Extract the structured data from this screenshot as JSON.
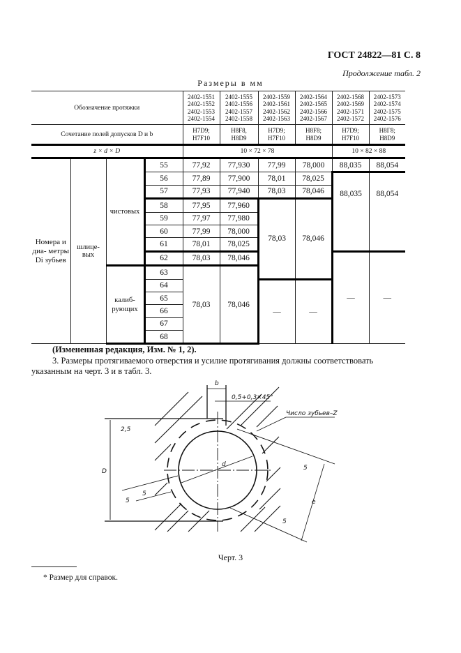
{
  "header": {
    "title": "ГОСТ 24822—81 С. 8",
    "continuation": "Продолжение табл. 2",
    "units": "Размеры в мм"
  },
  "table": {
    "designation_label": "Обозначение протяжки",
    "designations": [
      [
        "2402-1551",
        "2402-1552",
        "2402-1553",
        "2402-1554"
      ],
      [
        "2402-1555",
        "2402-1556",
        "2402-1557",
        "2402-1558"
      ],
      [
        "2402-1559",
        "2402-1561",
        "2402-1562",
        "2402-1563"
      ],
      [
        "2402-1564",
        "2402-1565",
        "2402-1566",
        "2402-1567"
      ],
      [
        "2402-1568",
        "2402-1569",
        "2402-1571",
        "2402-1572"
      ],
      [
        "2402-1573",
        "2402-1574",
        "2402-1575",
        "2402-1576"
      ]
    ],
    "tolerance_label": "Сочетание полей допусков D и b",
    "tolerances": [
      [
        "H7D9;",
        "H7F10"
      ],
      [
        "H8F8,",
        "H8D9"
      ],
      [
        "H7D9;",
        "H7F10"
      ],
      [
        "H8F8;",
        "H8D9"
      ],
      [
        "H7D9;",
        "H7F10"
      ],
      [
        "H8Г8;",
        "H8D9"
      ]
    ],
    "zdD_label": "z × d × D",
    "zdD": [
      "10 × 72 × 78",
      "10 × 82 × 88"
    ],
    "row_group": "Номера и диа- метры Di зубьев",
    "sub_group": "шлице- вых",
    "finish_label": "чистовых",
    "calib_label": "калиб- рующих",
    "rows": [
      {
        "n": "55",
        "v": [
          "77,92",
          "77,930",
          "77,99",
          "78,000",
          "88,035",
          "88,054"
        ]
      },
      {
        "n": "56",
        "v": [
          "77,89",
          "77,900",
          "78,01",
          "78,025"
        ]
      },
      {
        "n": "57",
        "v": [
          "77,93",
          "77,940",
          "78,03",
          "78,046"
        ]
      },
      {
        "n": "58",
        "v": [
          "77,95",
          "77,960"
        ]
      },
      {
        "n": "59",
        "v": [
          "77,97",
          "77,980"
        ]
      },
      {
        "n": "60",
        "v": [
          "77,99",
          "78,000"
        ]
      },
      {
        "n": "61",
        "v": [
          "78,01",
          "78,025"
        ]
      },
      {
        "n": "62",
        "v": [
          "78,03",
          "78,046"
        ]
      },
      {
        "n": "63"
      },
      {
        "n": "64"
      },
      {
        "n": "65"
      },
      {
        "n": "66"
      },
      {
        "n": "67"
      },
      {
        "n": "68"
      }
    ],
    "merged": {
      "c5_56_61": "88,035",
      "c6_56_61": "88,054",
      "c3_58_63": "78,03",
      "c4_58_63": "78,046",
      "c1_63_68": "78,03",
      "c2_63_68": "78,046",
      "dash": "—"
    }
  },
  "note": "(Измененная редакция, Изм. № 1, 2).",
  "paragraph": "3. Размеры протягиваемого отверстия и усилие протягивания должны соответствовать указанным на черт. 3 и в табл. 3.",
  "drawing": {
    "b": "b",
    "chamfer": "0,5+0,3×45°",
    "teeth": "Число зубьев–Z",
    "rough_top": "2,5",
    "rough_5a": "5",
    "rough_5b": "5",
    "rough_5c": "5",
    "rough_5d": "5",
    "D": "D",
    "d": "d",
    "e": "e"
  },
  "caption": "Черт. 3",
  "footnote": "* Размер для справок."
}
